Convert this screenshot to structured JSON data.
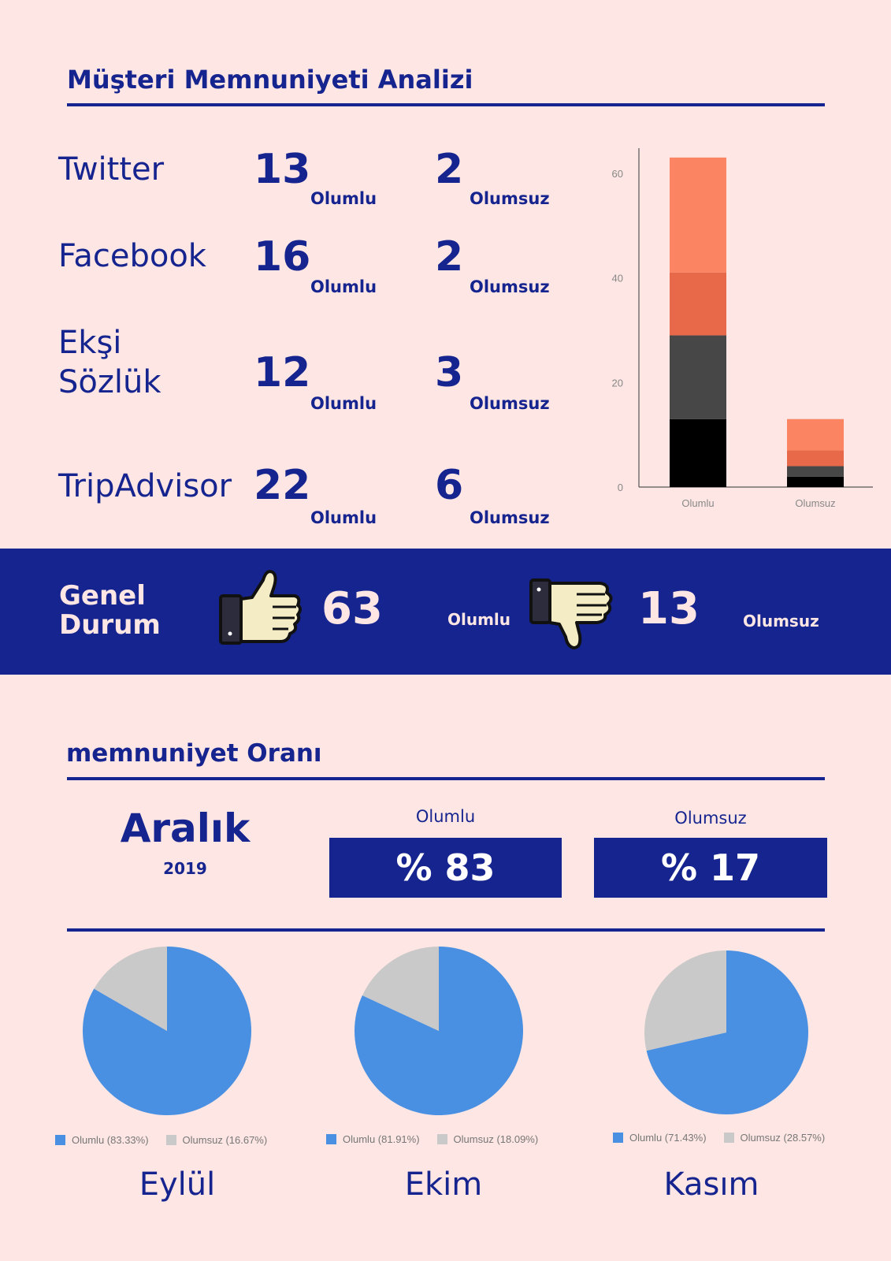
{
  "header": {
    "title": "Müşteri Memnuniyeti Analizi"
  },
  "platforms": [
    {
      "name": "Twitter",
      "positive": "13",
      "negative": "2",
      "positive_label": "Olumlu",
      "negative_label": "Olumsuz"
    },
    {
      "name": "Facebook",
      "positive": "16",
      "negative": "2",
      "positive_label": "Olumlu",
      "negative_label": "Olumsuz"
    },
    {
      "name": "Ekşi\nSözlük",
      "positive": "12",
      "negative": "3",
      "positive_label": "Olumlu",
      "negative_label": "Olumsuz"
    },
    {
      "name": "TripAdvisor",
      "positive": "22",
      "negative": "6",
      "positive_label": "Olumlu",
      "negative_label": "Olumsuz"
    }
  ],
  "summary": {
    "label": "Genel\nDurum",
    "positive_total": "63",
    "positive_label": "Olumlu",
    "negative_total": "13",
    "negative_label": "Olumsuz"
  },
  "rate_section": {
    "title": "memnuniyet Oranı",
    "month": "Aralık",
    "year": "2019",
    "positive_label": "Olumlu",
    "positive_value": "% 83",
    "negative_label": "Olumsuz",
    "negative_value": "% 17"
  },
  "colors": {
    "primary": "#16248f",
    "background": "#fde6e3",
    "pie_positive": "#4a90e2",
    "pie_negative": "#c9c9c9"
  },
  "chart_data": [
    {
      "type": "bar",
      "stacked": true,
      "categories": [
        "Olumlu",
        "Olumsuz"
      ],
      "series": [
        {
          "values": [
            13,
            2
          ],
          "color": "#000000"
        },
        {
          "values": [
            16,
            2
          ],
          "color": "#474747"
        },
        {
          "values": [
            12,
            3
          ],
          "color": "#e8694a"
        },
        {
          "values": [
            22,
            6
          ],
          "color": "#fb8463"
        }
      ],
      "yticks": [
        0,
        20,
        40,
        60
      ],
      "ylim": [
        0,
        66
      ],
      "grid": false
    },
    {
      "type": "pie",
      "month": "Eylül",
      "slices": [
        {
          "label": "Olumlu",
          "value": 83.33,
          "legend": "Olumlu (83.33%)"
        },
        {
          "label": "Olumsuz",
          "value": 16.67,
          "legend": "Olumsuz (16.67%)"
        }
      ]
    },
    {
      "type": "pie",
      "month": "Ekim",
      "slices": [
        {
          "label": "Olumlu",
          "value": 81.91,
          "legend": "Olumlu (81.91%)"
        },
        {
          "label": "Olumsuz",
          "value": 18.09,
          "legend": "Olumsuz (18.09%)"
        }
      ]
    },
    {
      "type": "pie",
      "month": "Kasım",
      "slices": [
        {
          "label": "Olumlu",
          "value": 71.43,
          "legend": "Olumlu (71.43%)"
        },
        {
          "label": "Olumsuz",
          "value": 28.57,
          "legend": "Olumsuz (28.57%)"
        }
      ]
    }
  ]
}
